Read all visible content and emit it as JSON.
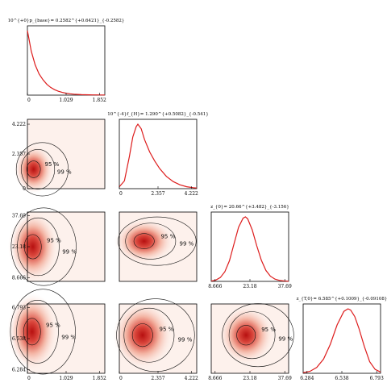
{
  "chart_data": {
    "type": "corner",
    "parameters": [
      {
        "title": "10^{+0}p_{base}= 0.2582^{+0.6421}_{-0.2582}",
        "ticks": [
          "0",
          "1.029",
          "1.852"
        ],
        "range": [
          0,
          2.0
        ]
      },
      {
        "title": "10^{-4}f_{H}= 1.290^{+0.5082}_{-0.541}",
        "ticks": [
          "0",
          "2.357",
          "4.222"
        ],
        "range": [
          0,
          4.6
        ]
      },
      {
        "title": "z_{0}= 20.66^{+3.482}_{-3.156}",
        "ticks": [
          "8.666",
          "23.18",
          "37.69"
        ],
        "range": [
          6.0,
          40.0
        ]
      },
      {
        "title": "z_{T,0}= 6.585^{+0.1009}_{-0.09108}",
        "ticks": [
          "6.284",
          "6.538",
          "6.793"
        ],
        "range": [
          6.25,
          6.82
        ]
      }
    ],
    "marginals": [
      {
        "x": [
          0.0,
          0.1,
          0.2,
          0.3,
          0.4,
          0.5,
          0.6,
          0.7,
          0.8,
          0.9,
          1.0,
          1.1,
          1.2,
          1.3,
          1.4,
          1.5,
          1.6,
          1.7,
          1.8,
          1.9,
          2.0
        ],
        "y": [
          1.0,
          0.68,
          0.47,
          0.33,
          0.24,
          0.17,
          0.12,
          0.085,
          0.06,
          0.042,
          0.03,
          0.021,
          0.015,
          0.011,
          0.008,
          0.006,
          0.005,
          0.004,
          0.004,
          0.003,
          0.003
        ]
      },
      {
        "x": [
          0.0,
          0.3,
          0.6,
          0.8,
          1.0,
          1.1,
          1.3,
          1.5,
          1.8,
          2.1,
          2.4,
          2.8,
          3.2,
          3.6,
          4.0,
          4.4,
          4.6
        ],
        "y": [
          0.03,
          0.12,
          0.5,
          0.8,
          0.96,
          1.0,
          0.93,
          0.76,
          0.57,
          0.43,
          0.31,
          0.19,
          0.11,
          0.06,
          0.03,
          0.015,
          0.01
        ]
      },
      {
        "x": [
          6,
          8,
          10,
          12,
          14,
          16,
          18,
          20,
          21,
          22,
          24,
          26,
          28,
          30,
          32,
          34,
          36,
          38,
          40
        ],
        "y": [
          0.005,
          0.02,
          0.06,
          0.15,
          0.32,
          0.58,
          0.84,
          0.98,
          1.0,
          0.97,
          0.8,
          0.55,
          0.33,
          0.17,
          0.08,
          0.035,
          0.015,
          0.006,
          0.003
        ]
      },
      {
        "x": [
          6.25,
          6.3,
          6.35,
          6.4,
          6.45,
          6.5,
          6.55,
          6.58,
          6.6,
          6.63,
          6.66,
          6.7,
          6.74,
          6.78,
          6.82
        ],
        "y": [
          0.01,
          0.03,
          0.09,
          0.22,
          0.45,
          0.75,
          0.96,
          1.0,
          0.98,
          0.88,
          0.7,
          0.42,
          0.18,
          0.06,
          0.02
        ]
      }
    ],
    "contour_labels": [
      "95 %",
      "99 %"
    ]
  }
}
